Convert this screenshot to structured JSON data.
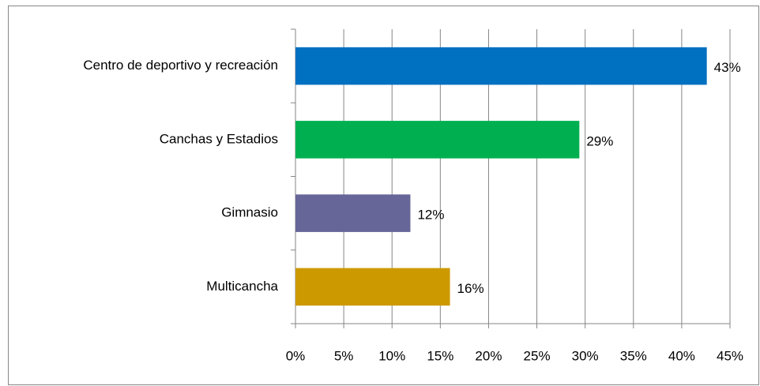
{
  "chart_data": {
    "type": "barh",
    "categories": [
      "Centro de deportivo y recreación",
      "Canchas y Estadios",
      "Gimnasio",
      "Multicancha"
    ],
    "values": [
      42.6,
      29.4,
      11.9,
      16.0
    ],
    "value_labels": [
      "43%",
      "29%",
      "12%",
      "16%"
    ],
    "colors": [
      "#0070c0",
      "#00b050",
      "#666699",
      "#cc9900"
    ],
    "xlim": [
      0,
      45
    ],
    "xticks": [
      {
        "value": 0,
        "label": "0%"
      },
      {
        "value": 5,
        "label": "5%"
      },
      {
        "value": 10,
        "label": "10%"
      },
      {
        "value": 15,
        "label": "15%"
      },
      {
        "value": 20,
        "label": "20%"
      },
      {
        "value": 25,
        "label": "25%"
      },
      {
        "value": 30,
        "label": "30%"
      },
      {
        "value": 35,
        "label": "35%"
      },
      {
        "value": 40,
        "label": "40%"
      },
      {
        "value": 45,
        "label": "45%"
      }
    ],
    "grid": true
  }
}
